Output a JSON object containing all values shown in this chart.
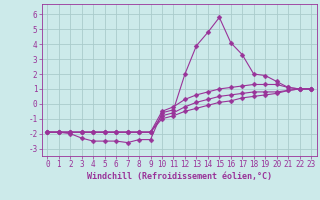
{
  "xlabel": "Windchill (Refroidissement éolien,°C)",
  "bg_color": "#cceaea",
  "grid_color": "#aacccc",
  "line_color": "#993399",
  "xlim": [
    -0.5,
    23.5
  ],
  "ylim": [
    -3.5,
    6.7
  ],
  "yticks": [
    -3,
    -2,
    -1,
    0,
    1,
    2,
    3,
    4,
    5,
    6
  ],
  "xticks": [
    0,
    1,
    2,
    3,
    4,
    5,
    6,
    7,
    8,
    9,
    10,
    11,
    12,
    13,
    14,
    15,
    16,
    17,
    18,
    19,
    20,
    21,
    22,
    23
  ],
  "line1_x": [
    0,
    1,
    2,
    3,
    4,
    5,
    6,
    7,
    8,
    9,
    10,
    11,
    12,
    13,
    14,
    15,
    16,
    17,
    18,
    19,
    20,
    21,
    22,
    23
  ],
  "line1_y": [
    -1.9,
    -1.9,
    -2.0,
    -2.3,
    -2.5,
    -2.5,
    -2.5,
    -2.6,
    -2.4,
    -2.4,
    -0.6,
    -0.4,
    2.0,
    3.9,
    4.8,
    5.8,
    4.1,
    3.3,
    2.0,
    1.9,
    1.5,
    1.1,
    1.0,
    1.0
  ],
  "line2_x": [
    0,
    1,
    2,
    3,
    4,
    5,
    6,
    7,
    8,
    9,
    10,
    11,
    12,
    13,
    14,
    15,
    16,
    17,
    18,
    19,
    20,
    21,
    22,
    23
  ],
  "line2_y": [
    -1.9,
    -1.9,
    -1.9,
    -1.9,
    -1.9,
    -1.9,
    -1.9,
    -1.9,
    -1.9,
    -1.9,
    -0.5,
    -0.2,
    0.3,
    0.6,
    0.8,
    1.0,
    1.1,
    1.2,
    1.3,
    1.3,
    1.3,
    1.1,
    1.0,
    1.0
  ],
  "line3_x": [
    0,
    1,
    2,
    3,
    4,
    5,
    6,
    7,
    8,
    9,
    10,
    11,
    12,
    13,
    14,
    15,
    16,
    17,
    18,
    19,
    20,
    21,
    22,
    23
  ],
  "line3_y": [
    -1.9,
    -1.9,
    -1.9,
    -1.9,
    -1.9,
    -1.9,
    -1.9,
    -1.9,
    -1.9,
    -1.9,
    -0.8,
    -0.6,
    -0.2,
    0.1,
    0.3,
    0.5,
    0.6,
    0.7,
    0.8,
    0.8,
    0.8,
    0.9,
    1.0,
    1.0
  ],
  "line4_x": [
    0,
    1,
    2,
    3,
    4,
    5,
    6,
    7,
    8,
    9,
    10,
    11,
    12,
    13,
    14,
    15,
    16,
    17,
    18,
    19,
    20,
    21,
    22,
    23
  ],
  "line4_y": [
    -1.9,
    -1.9,
    -1.9,
    -1.9,
    -1.9,
    -1.9,
    -1.9,
    -1.9,
    -1.9,
    -1.9,
    -1.0,
    -0.8,
    -0.5,
    -0.3,
    -0.1,
    0.1,
    0.2,
    0.4,
    0.5,
    0.6,
    0.7,
    0.9,
    1.0,
    1.0
  ],
  "tick_fontsize": 5.5,
  "xlabel_fontsize": 6.0,
  "marker_size": 2.5,
  "line_width": 0.8
}
